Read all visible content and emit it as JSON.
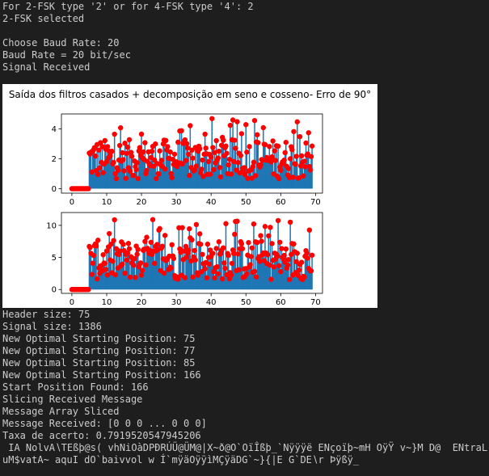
{
  "terminal": {
    "top_lines": [
      "For 2-FSK type '2' or for 4-FSK type '4': 2",
      "2-FSK selected",
      "",
      "Choose Baud Rate: 20",
      "Baud Rate = 20 bit/sec",
      "Signal Received"
    ],
    "bottom_lines": [
      "Header size: 75",
      "Signal size: 1386",
      "New Optimal Starting Position: 75",
      "New Optimal Starting Position: 77",
      "New Optimal Starting Position: 85",
      "New Optimal Starting Position: 166",
      "Start Position Found: 166",
      "Slicing Received Message",
      "Message Array Sliced",
      "Message Received: [0 0 0 ... 0 0 0]",
      "Taxa de acerto: 0.7919520547945206",
      " IA NolvA∖TEßþ@s( vhNiOàDPÐRÚÜ@ÜM@|X~ð@O`OïÎßþ_`Nÿÿÿë ENçoïþ~mH OÿŸ v~}M D@  ENtraL",
      "uM$vatA~ aquI dO`baivvol w Í`mÿäOÿÿìMÇÿäDG`~}{|E G`DE∖r Þÿßÿ_"
    ]
  },
  "figure": {
    "title": "Saída dos filtros casados + decomposição em seno e cosseno- Erro de 90°"
  },
  "chart_data": [
    {
      "type": "scatter",
      "title": "",
      "xlabel": "",
      "ylabel": "",
      "xlim": [
        -3,
        72
      ],
      "ylim": [
        -0.3,
        5.0
      ],
      "xticks": [
        0,
        10,
        20,
        30,
        40,
        50,
        60,
        70
      ],
      "yticks": [
        0,
        2,
        4
      ],
      "grid": false,
      "series": [
        {
          "style": "stem",
          "color": "#1f77b4",
          "x_start": 0,
          "x_step": 0.25,
          "zero_until": 4.8,
          "envelope": 4.7
        },
        {
          "style": "marker",
          "color": "#ff0000",
          "x_start": 0,
          "x_step": 0.25,
          "zero_until": 4.8,
          "envelope": 4.6
        }
      ]
    },
    {
      "type": "scatter",
      "title": "",
      "xlabel": "",
      "ylabel": "",
      "xlim": [
        -3,
        72
      ],
      "ylim": [
        -0.6,
        12.0
      ],
      "xticks": [
        0,
        10,
        20,
        30,
        40,
        50,
        60,
        70
      ],
      "yticks": [
        0,
        5,
        10
      ],
      "grid": false,
      "series": [
        {
          "style": "stem",
          "color": "#1f77b4",
          "x_start": 0,
          "x_step": 0.25,
          "zero_until": 4.8,
          "envelope": 11.0
        },
        {
          "style": "marker",
          "color": "#ff0000",
          "x_start": 0,
          "x_step": 0.25,
          "zero_until": 4.8,
          "envelope": 10.5
        }
      ]
    }
  ]
}
